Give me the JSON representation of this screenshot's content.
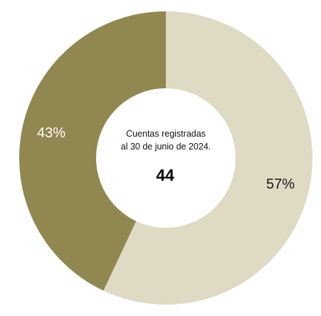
{
  "chart_data": {
    "type": "pie",
    "variant": "donut",
    "series": [
      {
        "value": 57,
        "label": "57%",
        "color": "#dedac3"
      },
      {
        "value": 43,
        "label": "43%",
        "color": "#918751"
      }
    ],
    "center": {
      "line1": "Cuentas registradas",
      "line2": "al 30 de junio de 2024.",
      "value": "44"
    }
  }
}
